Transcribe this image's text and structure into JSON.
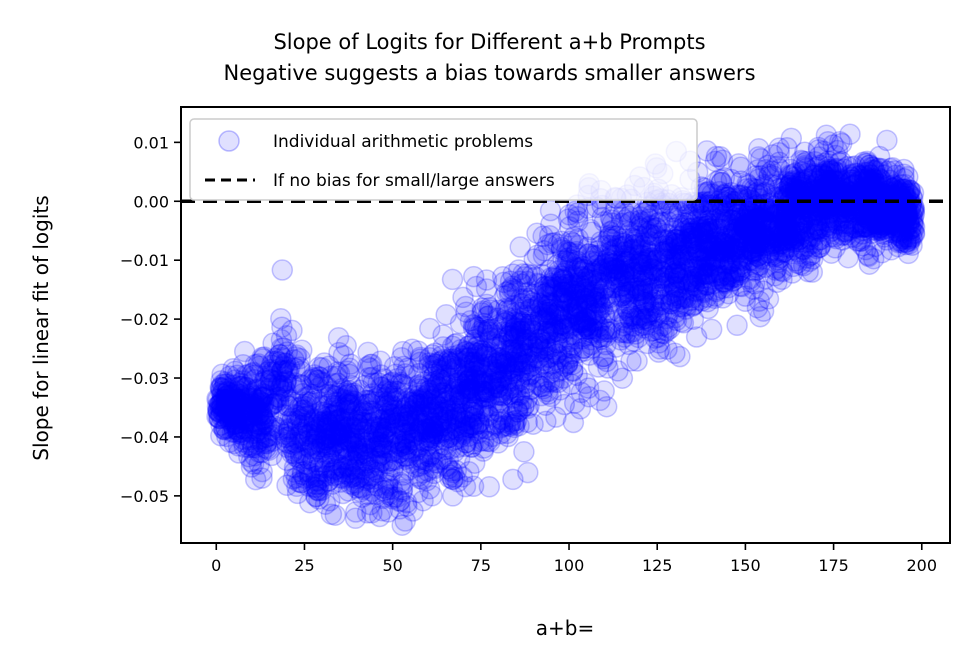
{
  "chart_data": {
    "type": "scatter",
    "title": "Slope of Logits for Different a+b Prompts",
    "subtitle": "Negative suggests a bias towards smaller answers",
    "xlabel": "a+b=",
    "ylabel": "Slope for linear fit of logits",
    "xlim": [
      -10,
      208
    ],
    "ylim": [
      -0.058,
      0.016
    ],
    "x_ticks": [
      "0",
      "25",
      "50",
      "75",
      "100",
      "125",
      "150",
      "175",
      "200"
    ],
    "y_ticks": [
      "0.01",
      "0.00",
      "−0.01",
      "−0.02",
      "−0.03",
      "−0.04",
      "−0.05"
    ],
    "grid": false,
    "legend_position": "top-left",
    "series": [
      {
        "name": "Individual arithmetic problems",
        "kind": "scatter",
        "color": "#0000ff",
        "opacity": 0.12,
        "x_range": [
          0,
          198
        ],
        "y_center": [
          [
            0,
            -0.035
          ],
          [
            5,
            -0.035
          ],
          [
            10,
            -0.037
          ],
          [
            15,
            -0.034
          ],
          [
            19,
            -0.031
          ],
          [
            22,
            -0.038
          ],
          [
            30,
            -0.04
          ],
          [
            45,
            -0.04
          ],
          [
            55,
            -0.038
          ],
          [
            65,
            -0.035
          ],
          [
            75,
            -0.03
          ],
          [
            85,
            -0.026
          ],
          [
            95,
            -0.02
          ],
          [
            105,
            -0.016
          ],
          [
            115,
            -0.013
          ],
          [
            125,
            -0.012
          ],
          [
            135,
            -0.008
          ],
          [
            145,
            -0.006
          ],
          [
            155,
            -0.004
          ],
          [
            165,
            -0.002
          ],
          [
            175,
            0.001
          ],
          [
            185,
            0.0
          ],
          [
            197,
            -0.002
          ]
        ],
        "y_spread": [
          [
            0,
            0.004
          ],
          [
            20,
            0.012
          ],
          [
            50,
            0.012
          ],
          [
            80,
            0.013
          ],
          [
            110,
            0.015
          ],
          [
            140,
            0.011
          ],
          [
            170,
            0.009
          ],
          [
            197,
            0.006
          ]
        ],
        "y_min": -0.055,
        "y_max": 0.0125
      },
      {
        "name": "If no bias for small/large answers",
        "kind": "hline",
        "y": 0.0,
        "color": "#000000",
        "linestyle": "dashed"
      }
    ]
  }
}
